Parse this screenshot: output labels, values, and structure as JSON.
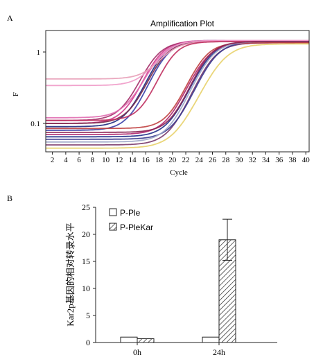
{
  "chart_data": [
    {
      "panel": "A",
      "type": "line",
      "title": "Amplification Plot",
      "xlabel": "Cycle",
      "ylabel": "F",
      "yscale": "log",
      "xlim": [
        1,
        40.5
      ],
      "ylim": [
        0.04,
        2.0
      ],
      "x_ticks": [
        2,
        4,
        6,
        8,
        10,
        12,
        14,
        16,
        18,
        20,
        22,
        24,
        26,
        28,
        30,
        32,
        34,
        36,
        38,
        40
      ],
      "y_ticks": [
        {
          "value": 0.1,
          "label": "0.1"
        },
        {
          "value": 1,
          "label": "1"
        }
      ],
      "grid": false,
      "curve_model": "baseline + (plateau - baseline) / (1 + exp(-(cycle - midpoint) / slope))",
      "curves": [
        {
          "color": "#d23a8c",
          "baseline": 0.1,
          "plateau": 1.45,
          "midpoint": 17.5,
          "slope": 1.5
        },
        {
          "color": "#1d2a80",
          "baseline": 0.09,
          "plateau": 1.45,
          "midpoint": 18.0,
          "slope": 1.5
        },
        {
          "color": "#a4306a",
          "baseline": 0.11,
          "plateau": 1.4,
          "midpoint": 17.0,
          "slope": 1.5
        },
        {
          "color": "#3a3fa8",
          "baseline": 0.08,
          "plateau": 1.45,
          "midpoint": 18.5,
          "slope": 1.5
        },
        {
          "color": "#e06cb0",
          "baseline": 0.12,
          "plateau": 1.45,
          "midpoint": 17.8,
          "slope": 1.6
        },
        {
          "color": "#7a2a4a",
          "baseline": 0.1,
          "plateau": 1.4,
          "midpoint": 18.2,
          "slope": 1.5
        },
        {
          "color": "#ef9ac8",
          "baseline": 0.34,
          "plateau": 1.45,
          "midpoint": 18.5,
          "slope": 1.5
        },
        {
          "color": "#e8a0b8",
          "baseline": 0.42,
          "plateau": 1.4,
          "midpoint": 19.0,
          "slope": 1.5
        },
        {
          "color": "#c03060",
          "baseline": 0.11,
          "plateau": 1.4,
          "midpoint": 19.5,
          "slope": 1.4
        },
        {
          "color": "#20308a",
          "baseline": 0.065,
          "plateau": 1.4,
          "midpoint": 25.0,
          "slope": 1.6
        },
        {
          "color": "#b02870",
          "baseline": 0.07,
          "plateau": 1.35,
          "midpoint": 24.5,
          "slope": 1.6
        },
        {
          "color": "#7a3a6a",
          "baseline": 0.05,
          "plateau": 1.35,
          "midpoint": 25.5,
          "slope": 1.6
        },
        {
          "color": "#3a3a90",
          "baseline": 0.06,
          "plateau": 1.4,
          "midpoint": 25.8,
          "slope": 1.6
        },
        {
          "color": "#c04040",
          "baseline": 0.085,
          "plateau": 1.35,
          "midpoint": 24.2,
          "slope": 1.5
        },
        {
          "color": "#9ea7c8",
          "baseline": 0.055,
          "plateau": 1.4,
          "midpoint": 25.2,
          "slope": 1.6
        },
        {
          "color": "#e8d26a",
          "baseline": 0.045,
          "plateau": 1.3,
          "midpoint": 27.0,
          "slope": 1.8
        },
        {
          "color": "#8a2050",
          "baseline": 0.075,
          "plateau": 1.4,
          "midpoint": 24.8,
          "slope": 1.5
        }
      ]
    },
    {
      "panel": "B",
      "type": "bar",
      "ylabel": "Kar2p基因的相对转录水平",
      "categories": [
        "0h",
        "24h"
      ],
      "ylim": [
        0,
        25
      ],
      "y_ticks": [
        0,
        5,
        10,
        15,
        20,
        25
      ],
      "legend_position": "top-left",
      "series": [
        {
          "name": "P-Ple",
          "values": [
            1.0,
            1.0
          ],
          "fill": "open",
          "error": [
            0,
            0
          ]
        },
        {
          "name": "P-PleKar",
          "values": [
            0.7,
            19.0
          ],
          "fill": "hatched",
          "error": [
            0,
            3.8
          ]
        }
      ]
    }
  ],
  "labels": {
    "panel_a": "A",
    "panel_b": "B"
  }
}
